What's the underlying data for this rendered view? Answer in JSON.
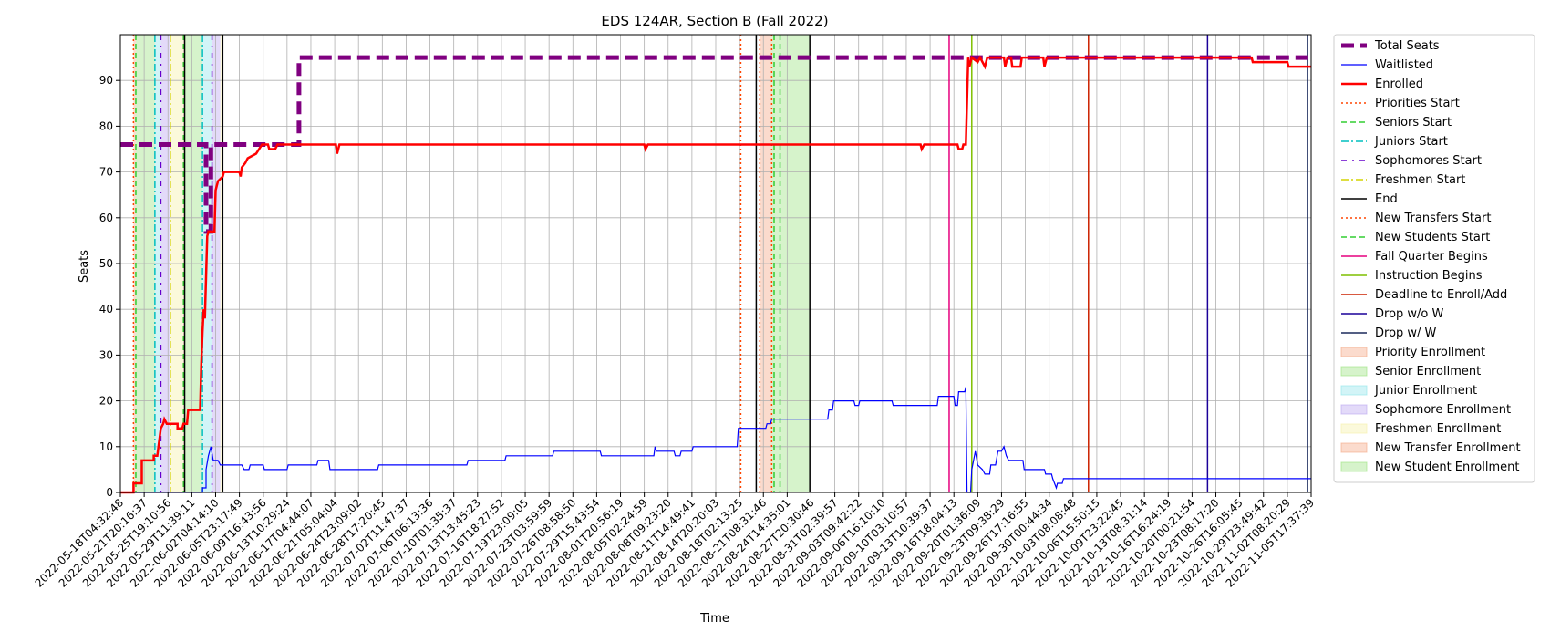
{
  "chart_data": {
    "type": "line",
    "title": "EDS 124AR, Section B (Fall 2022)",
    "xlabel": "Time",
    "ylabel": "Seats",
    "ylim": [
      0,
      100
    ],
    "yticks": [
      0,
      10,
      20,
      30,
      40,
      50,
      60,
      70,
      80,
      90
    ],
    "x_index_range": [
      0,
      100
    ],
    "grid": true,
    "legend_position": "outside-right",
    "xtick_labels": [
      "2022-05-18T04:32:48",
      "2022-05-21T20:16:37",
      "2022-05-25T19:10:56",
      "2022-05-29T11:39:11",
      "2022-06-02T04:14:10",
      "2022-06-05T23:17:49",
      "2022-06-09T16:43:56",
      "2022-06-13T10:29:24",
      "2022-06-17T04:44:07",
      "2022-06-21T05:04:04",
      "2022-06-24T23:09:02",
      "2022-06-28T17:20:45",
      "2022-07-02T11:47:37",
      "2022-07-06T06:13:36",
      "2022-07-10T01:35:37",
      "2022-07-13T13:45:23",
      "2022-07-16T18:27:52",
      "2022-07-19T23:09:05",
      "2022-07-23T03:59:59",
      "2022-07-26T08:58:50",
      "2022-07-29T15:43:54",
      "2022-08-01T20:56:19",
      "2022-08-05T02:24:59",
      "2022-08-08T09:23:20",
      "2022-08-11T14:49:41",
      "2022-08-14T20:20:03",
      "2022-08-18T02:13:25",
      "2022-08-21T08:31:46",
      "2022-08-24T14:35:01",
      "2022-08-27T20:30:46",
      "2022-08-31T02:39:57",
      "2022-09-03T09:42:22",
      "2022-09-06T16:10:10",
      "2022-09-10T03:10:57",
      "2022-09-13T10:39:37",
      "2022-09-16T18:04:13",
      "2022-09-20T01:36:09",
      "2022-09-23T09:38:29",
      "2022-09-26T17:16:55",
      "2022-09-30T00:44:34",
      "2022-10-03T08:08:48",
      "2022-10-06T15:50:15",
      "2022-10-09T23:22:45",
      "2022-10-13T08:31:14",
      "2022-10-16T16:24:19",
      "2022-10-20T00:21:54",
      "2022-10-23T08:17:20",
      "2022-10-26T16:05:45",
      "2022-10-29T23:49:42",
      "2022-11-02T08:20:29",
      "2022-11-05T17:37:39"
    ],
    "series": [
      {
        "name": "Total Seats",
        "color": "#800080",
        "style": "dashed-thick",
        "points": [
          [
            0,
            76
          ],
          [
            7.2,
            76
          ],
          [
            7.2,
            57
          ],
          [
            7.6,
            57
          ],
          [
            7.6,
            76
          ],
          [
            15.0,
            76
          ],
          [
            15.0,
            95
          ],
          [
            100,
            95
          ]
        ]
      },
      {
        "name": "Waitlisted",
        "color": "#0000ff",
        "style": "solid-thin",
        "points": [
          [
            0,
            0
          ],
          [
            6.9,
            0
          ],
          [
            6.9,
            1
          ],
          [
            7.2,
            1
          ],
          [
            7.2,
            5
          ],
          [
            7.4,
            8
          ],
          [
            7.6,
            10
          ],
          [
            7.8,
            7
          ],
          [
            8.2,
            7
          ],
          [
            8.4,
            6
          ],
          [
            10.2,
            6
          ],
          [
            10.4,
            5
          ],
          [
            10.8,
            5
          ],
          [
            10.9,
            6
          ],
          [
            12.0,
            6
          ],
          [
            12.1,
            5
          ],
          [
            14.0,
            5
          ],
          [
            14.1,
            6
          ],
          [
            16.5,
            6
          ],
          [
            16.6,
            7
          ],
          [
            17.5,
            7
          ],
          [
            17.6,
            5
          ],
          [
            21.6,
            5
          ],
          [
            21.7,
            6
          ],
          [
            29.1,
            6
          ],
          [
            29.2,
            7
          ],
          [
            32.3,
            7
          ],
          [
            32.4,
            8
          ],
          [
            36.3,
            8
          ],
          [
            36.4,
            9
          ],
          [
            40.3,
            9
          ],
          [
            40.4,
            8
          ],
          [
            44.8,
            8
          ],
          [
            44.9,
            10
          ],
          [
            45.0,
            9
          ],
          [
            46.5,
            9
          ],
          [
            46.6,
            8
          ],
          [
            47.0,
            8
          ],
          [
            47.1,
            9
          ],
          [
            48.0,
            9
          ],
          [
            48.1,
            10
          ],
          [
            51.8,
            10
          ],
          [
            51.9,
            14
          ],
          [
            54.2,
            14
          ],
          [
            54.3,
            15
          ],
          [
            54.6,
            15
          ],
          [
            54.7,
            16
          ],
          [
            59.4,
            16
          ],
          [
            59.5,
            18
          ],
          [
            59.8,
            18
          ],
          [
            59.9,
            20
          ],
          [
            61.6,
            20
          ],
          [
            61.7,
            19
          ],
          [
            62.0,
            19
          ],
          [
            62.1,
            20
          ],
          [
            64.8,
            20
          ],
          [
            64.9,
            19
          ],
          [
            68.6,
            19
          ],
          [
            68.7,
            21
          ],
          [
            70.0,
            21
          ],
          [
            70.1,
            19
          ],
          [
            70.3,
            19
          ],
          [
            70.4,
            22
          ],
          [
            70.9,
            22
          ],
          [
            71.0,
            23
          ],
          [
            71.1,
            0
          ],
          [
            71.4,
            0
          ],
          [
            71.5,
            5
          ],
          [
            71.8,
            9
          ],
          [
            72.0,
            6
          ],
          [
            72.4,
            5
          ],
          [
            72.6,
            4
          ],
          [
            73.0,
            4
          ],
          [
            73.1,
            6
          ],
          [
            73.5,
            6
          ],
          [
            73.7,
            9
          ],
          [
            74.0,
            9
          ],
          [
            74.2,
            10
          ],
          [
            74.4,
            8
          ],
          [
            74.6,
            7
          ],
          [
            75.8,
            7
          ],
          [
            75.9,
            5
          ],
          [
            77.6,
            5
          ],
          [
            77.7,
            4
          ],
          [
            78.2,
            4
          ],
          [
            78.3,
            3
          ],
          [
            78.6,
            1
          ],
          [
            78.7,
            2
          ],
          [
            79.1,
            2
          ],
          [
            79.2,
            3
          ],
          [
            100,
            3
          ]
        ]
      },
      {
        "name": "Enrolled",
        "color": "#ff0000",
        "style": "solid-thick",
        "points": [
          [
            0,
            0
          ],
          [
            1.1,
            0
          ],
          [
            1.1,
            2
          ],
          [
            1.8,
            2
          ],
          [
            1.8,
            7
          ],
          [
            2.8,
            7
          ],
          [
            2.8,
            8
          ],
          [
            3.1,
            8
          ],
          [
            3.4,
            14
          ],
          [
            3.6,
            15
          ],
          [
            3.7,
            16
          ],
          [
            3.9,
            15
          ],
          [
            4.8,
            15
          ],
          [
            4.8,
            14
          ],
          [
            5.2,
            14
          ],
          [
            5.3,
            15
          ],
          [
            5.6,
            15
          ],
          [
            5.7,
            18
          ],
          [
            6.7,
            18
          ],
          [
            6.8,
            28
          ],
          [
            6.9,
            35
          ],
          [
            7.0,
            40
          ],
          [
            7.1,
            38
          ],
          [
            7.3,
            56
          ],
          [
            7.4,
            57
          ],
          [
            7.9,
            57
          ],
          [
            8.0,
            66
          ],
          [
            8.2,
            68
          ],
          [
            8.6,
            69
          ],
          [
            8.7,
            70
          ],
          [
            10.0,
            70
          ],
          [
            10.1,
            69
          ],
          [
            10.2,
            71
          ],
          [
            10.5,
            72
          ],
          [
            10.7,
            73
          ],
          [
            11.4,
            74
          ],
          [
            11.9,
            76
          ],
          [
            12.4,
            76
          ],
          [
            12.5,
            75
          ],
          [
            13.0,
            75
          ],
          [
            13.2,
            76
          ],
          [
            18.1,
            76
          ],
          [
            18.2,
            74
          ],
          [
            18.4,
            76
          ],
          [
            44.0,
            76
          ],
          [
            44.1,
            75
          ],
          [
            44.3,
            76
          ],
          [
            67.2,
            76
          ],
          [
            67.3,
            75
          ],
          [
            67.5,
            76
          ],
          [
            70.3,
            76
          ],
          [
            70.4,
            75
          ],
          [
            70.7,
            75
          ],
          [
            70.8,
            76
          ],
          [
            71.0,
            76
          ],
          [
            71.2,
            95
          ],
          [
            71.3,
            93
          ],
          [
            71.5,
            95
          ],
          [
            72.0,
            94
          ],
          [
            72.2,
            95
          ],
          [
            72.6,
            93
          ],
          [
            72.8,
            95
          ],
          [
            74.2,
            95
          ],
          [
            74.3,
            93
          ],
          [
            74.5,
            95
          ],
          [
            74.8,
            95
          ],
          [
            74.9,
            93
          ],
          [
            75.6,
            93
          ],
          [
            75.7,
            95
          ],
          [
            77.5,
            95
          ],
          [
            77.6,
            93
          ],
          [
            77.8,
            95
          ],
          [
            95.0,
            95
          ],
          [
            95.1,
            94
          ],
          [
            98.0,
            94
          ],
          [
            98.1,
            93
          ],
          [
            100,
            93
          ]
        ]
      }
    ],
    "markers": [
      {
        "name": "Priorities Start",
        "color": "#ff4500",
        "style": "dotted",
        "x": [
          1.1,
          52.1
        ]
      },
      {
        "name": "Seniors Start",
        "color": "#32cd32",
        "style": "dashed",
        "x": [
          1.3,
          5.3
        ]
      },
      {
        "name": "Juniors Start",
        "color": "#00bfbf",
        "style": "dashdot",
        "x": [
          2.9,
          6.9
        ]
      },
      {
        "name": "Sophomores Start",
        "color": "#6600cc",
        "style": "dashdot-loose",
        "x": [
          3.4,
          7.7
        ]
      },
      {
        "name": "Freshmen Start",
        "color": "#d4d400",
        "style": "dashdot",
        "x": [
          4.2
        ]
      },
      {
        "name": "End",
        "color": "#000000",
        "style": "solid",
        "x": [
          5.4,
          8.6,
          53.4,
          57.9
        ]
      },
      {
        "name": "New Transfers Start",
        "color": "#ff4500",
        "style": "dotted",
        "x": [
          53.7,
          54.7
        ]
      },
      {
        "name": "New Students Start",
        "color": "#32cd32",
        "style": "dashed",
        "x": [
          54.9,
          55.4
        ]
      },
      {
        "name": "Fall Quarter Begins",
        "color": "#e6007e",
        "style": "solid",
        "x": [
          69.6
        ]
      },
      {
        "name": "Instruction Begins",
        "color": "#7fbf00",
        "style": "solid",
        "x": [
          71.5
        ]
      },
      {
        "name": "Deadline to Enroll/Add",
        "color": "#cc2200",
        "style": "solid",
        "x": [
          81.3
        ]
      },
      {
        "name": "Drop w/o W",
        "color": "#1a0099",
        "style": "solid",
        "x": [
          91.3
        ]
      },
      {
        "name": "Drop w/ W",
        "color": "#1b2a5c",
        "style": "solid",
        "x": [
          99.7
        ]
      }
    ],
    "regions": [
      {
        "name": "Priority Enrollment",
        "color": "#f4a582",
        "spans": [
          [
            1.1,
            1.3
          ],
          [
            5.3,
            5.4
          ]
        ]
      },
      {
        "name": "Senior Enrollment",
        "color": "#98e27c",
        "spans": [
          [
            1.3,
            2.9
          ],
          [
            5.4,
            6.9
          ]
        ]
      },
      {
        "name": "Junior Enrollment",
        "color": "#8ee4ea",
        "spans": [
          [
            2.9,
            3.4
          ],
          [
            6.9,
            7.7
          ]
        ]
      },
      {
        "name": "Sophomore Enrollment",
        "color": "#b9a3f0",
        "spans": [
          [
            3.4,
            4.2
          ],
          [
            7.7,
            8.4
          ]
        ]
      },
      {
        "name": "Freshmen Enrollment",
        "color": "#f5f0a6",
        "spans": [
          [
            4.2,
            5.3
          ],
          [
            8.4,
            8.6
          ]
        ]
      },
      {
        "name": "New Transfer Enrollment",
        "color": "#f4a582",
        "spans": [
          [
            53.7,
            54.7
          ]
        ]
      },
      {
        "name": "New Student Enrollment",
        "color": "#98e27c",
        "spans": [
          [
            54.7,
            57.9
          ]
        ]
      }
    ]
  }
}
